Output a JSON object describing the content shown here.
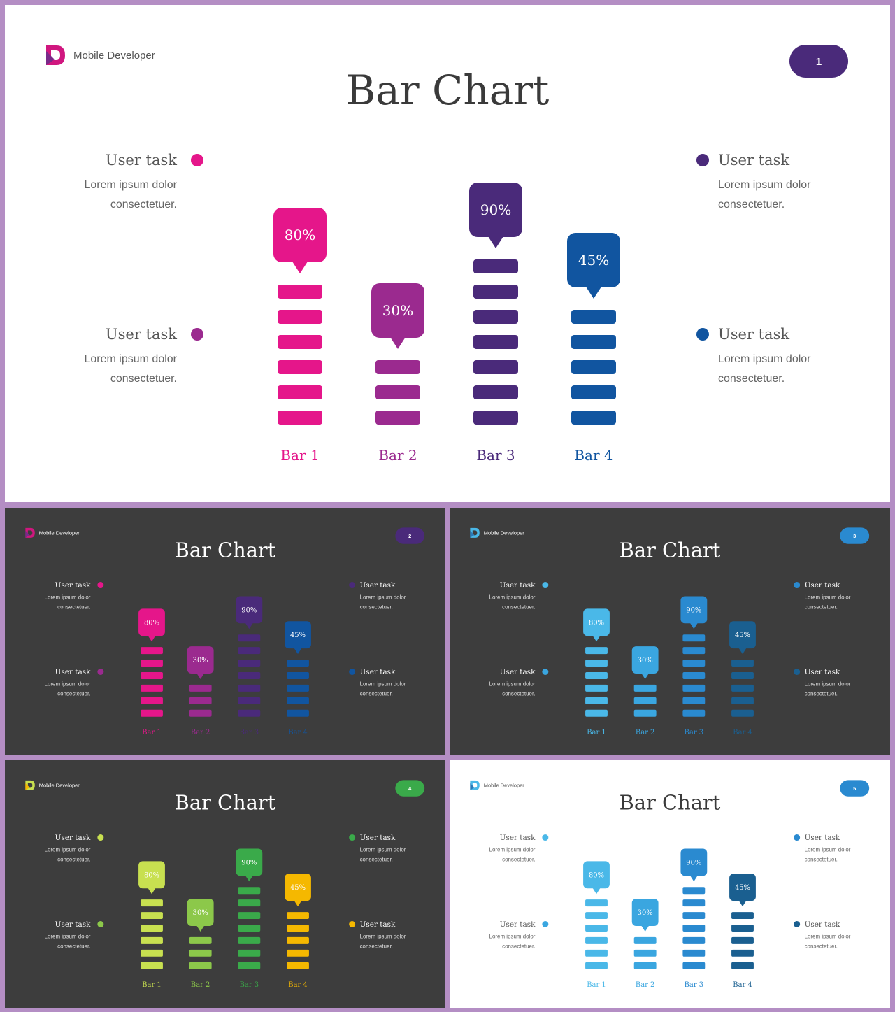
{
  "slides": [
    {
      "brand": "Mobile Developer",
      "title": "Bar Chart",
      "page_number": "1",
      "theme": {
        "background": "#ffffff",
        "title_color": "#3a3a3a",
        "text_color": "#555555",
        "desc_color": "#666666",
        "badge_color": "#4a2a7a",
        "logo_colors": [
          "#d0177f",
          "#7a2a8a"
        ]
      },
      "legend": [
        {
          "label": "User task",
          "desc_1": "Lorem ipsum dolor",
          "desc_2": "consectetuer.",
          "color": "#e5168a",
          "position": "top-left"
        },
        {
          "label": "User task",
          "desc_1": "Lorem ipsum dolor",
          "desc_2": "consectetuer.",
          "color": "#9b2a8f",
          "position": "bottom-left"
        },
        {
          "label": "User task",
          "desc_1": "Lorem ipsum dolor",
          "desc_2": "consectetuer.",
          "color": "#4a2a7a",
          "position": "top-right"
        },
        {
          "label": "User task",
          "desc_1": "Lorem ipsum dolor",
          "desc_2": "consectetuer.",
          "color": "#1155a0",
          "position": "bottom-right"
        }
      ],
      "chart_data": {
        "type": "bar",
        "categories": [
          "Bar 1",
          "Bar 2",
          "Bar 3",
          "Bar 4"
        ],
        "values": [
          80,
          30,
          90,
          45
        ],
        "value_labels": [
          "80%",
          "30%",
          "90%",
          "45%"
        ],
        "segments": [
          6,
          3,
          7,
          5
        ],
        "colors": [
          "#e5168a",
          "#9b2a8f",
          "#4a2a7a",
          "#1155a0"
        ]
      }
    },
    {
      "brand": "Mobile Developer",
      "title": "Bar Chart",
      "page_number": "2",
      "theme": {
        "background": "#3d3d3d",
        "title_color": "#ffffff",
        "text_color": "#ffffff",
        "desc_color": "#dddddd",
        "badge_color": "#4a2a7a",
        "logo_colors": [
          "#d0177f",
          "#7a2a8a"
        ]
      },
      "legend": [
        {
          "label": "User task",
          "desc_1": "Lorem ipsum dolor",
          "desc_2": "consectetuer.",
          "color": "#e5168a",
          "position": "top-left"
        },
        {
          "label": "User task",
          "desc_1": "Lorem ipsum dolor",
          "desc_2": "consectetuer.",
          "color": "#9b2a8f",
          "position": "bottom-left"
        },
        {
          "label": "User task",
          "desc_1": "Lorem ipsum dolor",
          "desc_2": "consectetuer.",
          "color": "#4a2a7a",
          "position": "top-right"
        },
        {
          "label": "User task",
          "desc_1": "Lorem ipsum dolor",
          "desc_2": "consectetuer.",
          "color": "#1155a0",
          "position": "bottom-right"
        }
      ],
      "chart_data": {
        "type": "bar",
        "categories": [
          "Bar 1",
          "Bar 2",
          "Bar 3",
          "Bar 4"
        ],
        "values": [
          80,
          30,
          90,
          45
        ],
        "value_labels": [
          "80%",
          "30%",
          "90%",
          "45%"
        ],
        "segments": [
          6,
          3,
          7,
          5
        ],
        "colors": [
          "#e5168a",
          "#9b2a8f",
          "#4a2a7a",
          "#1155a0"
        ]
      }
    },
    {
      "brand": "Mobile Developer",
      "title": "Bar Chart",
      "page_number": "3",
      "theme": {
        "background": "#3d3d3d",
        "title_color": "#ffffff",
        "text_color": "#ffffff",
        "desc_color": "#dddddd",
        "badge_color": "#2a8ad0",
        "logo_colors": [
          "#4ab8e8",
          "#2a7ab8"
        ]
      },
      "legend": [
        {
          "label": "User task",
          "desc_1": "Lorem ipsum dolor",
          "desc_2": "consectetuer.",
          "color": "#4ab8e8",
          "position": "top-left"
        },
        {
          "label": "User task",
          "desc_1": "Lorem ipsum dolor",
          "desc_2": "consectetuer.",
          "color": "#3aa6e0",
          "position": "bottom-left"
        },
        {
          "label": "User task",
          "desc_1": "Lorem ipsum dolor",
          "desc_2": "consectetuer.",
          "color": "#2a8ad0",
          "position": "top-right"
        },
        {
          "label": "User task",
          "desc_1": "Lorem ipsum dolor",
          "desc_2": "consectetuer.",
          "color": "#1a5f90",
          "position": "bottom-right"
        }
      ],
      "chart_data": {
        "type": "bar",
        "categories": [
          "Bar 1",
          "Bar 2",
          "Bar 3",
          "Bar 4"
        ],
        "values": [
          80,
          30,
          90,
          45
        ],
        "value_labels": [
          "80%",
          "30%",
          "90%",
          "45%"
        ],
        "segments": [
          6,
          3,
          7,
          5
        ],
        "colors": [
          "#4ab8e8",
          "#3aa6e0",
          "#2a8ad0",
          "#1a5f90"
        ]
      }
    },
    {
      "brand": "Mobile Developer",
      "title": "Bar Chart",
      "page_number": "4",
      "theme": {
        "background": "#3d3d3d",
        "title_color": "#ffffff",
        "text_color": "#ffffff",
        "desc_color": "#dddddd",
        "badge_color": "#3aaa4a",
        "logo_colors": [
          "#c8e050",
          "#f5b800"
        ]
      },
      "legend": [
        {
          "label": "User task",
          "desc_1": "Lorem ipsum dolor",
          "desc_2": "consectetuer.",
          "color": "#c8e050",
          "position": "top-left"
        },
        {
          "label": "User task",
          "desc_1": "Lorem ipsum dolor",
          "desc_2": "consectetuer.",
          "color": "#8cc84a",
          "position": "bottom-left"
        },
        {
          "label": "User task",
          "desc_1": "Lorem ipsum dolor",
          "desc_2": "consectetuer.",
          "color": "#3aaa4a",
          "position": "top-right"
        },
        {
          "label": "User task",
          "desc_1": "Lorem ipsum dolor",
          "desc_2": "consectetuer.",
          "color": "#f5b800",
          "position": "bottom-right"
        }
      ],
      "chart_data": {
        "type": "bar",
        "categories": [
          "Bar 1",
          "Bar 2",
          "Bar 3",
          "Bar 4"
        ],
        "values": [
          80,
          30,
          90,
          45
        ],
        "value_labels": [
          "80%",
          "30%",
          "90%",
          "45%"
        ],
        "segments": [
          6,
          3,
          7,
          5
        ],
        "colors": [
          "#c8e050",
          "#8cc84a",
          "#3aaa4a",
          "#f5b800"
        ]
      }
    },
    {
      "brand": "Mobile Developer",
      "title": "Bar Chart",
      "page_number": "5",
      "theme": {
        "background": "#ffffff",
        "title_color": "#3a3a3a",
        "text_color": "#555555",
        "desc_color": "#666666",
        "badge_color": "#2a8ad0",
        "logo_colors": [
          "#4ab8e8",
          "#2a7ab8"
        ]
      },
      "legend": [
        {
          "label": "User task",
          "desc_1": "Lorem ipsum dolor",
          "desc_2": "consectetuer.",
          "color": "#4ab8e8",
          "position": "top-left"
        },
        {
          "label": "User task",
          "desc_1": "Lorem ipsum dolor",
          "desc_2": "consectetuer.",
          "color": "#3aa6e0",
          "position": "bottom-left"
        },
        {
          "label": "User task",
          "desc_1": "Lorem ipsum dolor",
          "desc_2": "consectetuer.",
          "color": "#2a8ad0",
          "position": "top-right"
        },
        {
          "label": "User task",
          "desc_1": "Lorem ipsum dolor",
          "desc_2": "consectetuer.",
          "color": "#1a5f90",
          "position": "bottom-right"
        }
      ],
      "chart_data": {
        "type": "bar",
        "categories": [
          "Bar 1",
          "Bar 2",
          "Bar 3",
          "Bar 4"
        ],
        "values": [
          80,
          30,
          90,
          45
        ],
        "value_labels": [
          "80%",
          "30%",
          "90%",
          "45%"
        ],
        "segments": [
          6,
          3,
          7,
          5
        ],
        "colors": [
          "#4ab8e8",
          "#3aa6e0",
          "#2a8ad0",
          "#1a5f90"
        ]
      }
    }
  ]
}
